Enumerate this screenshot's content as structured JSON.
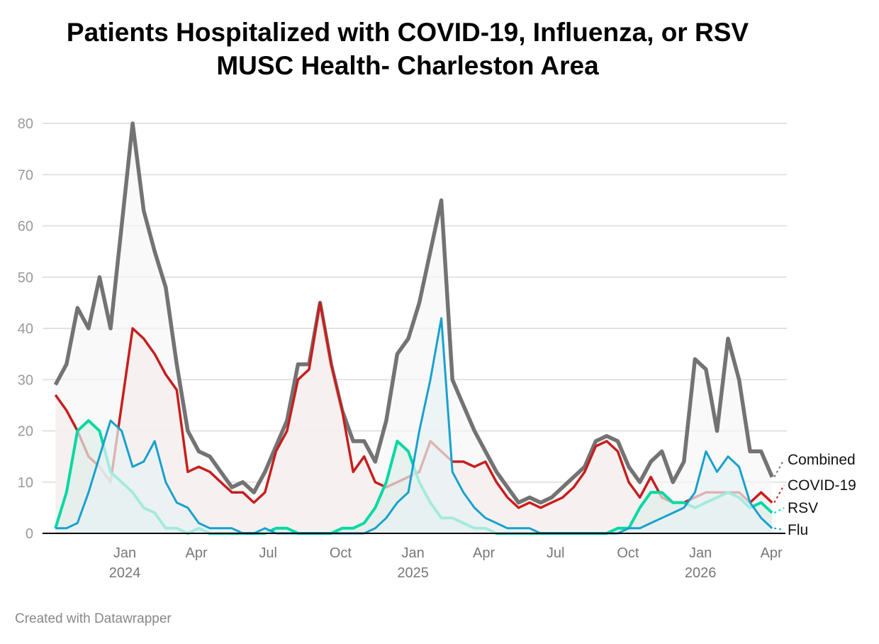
{
  "title": "Patients Hospitalized with COVID-19, Influenza, or RSV",
  "subtitle": "MUSC Health- Charleston Area",
  "footer": "Created with Datawrapper",
  "chart_data": {
    "type": "area",
    "title": "Patients Hospitalized with COVID-19, Influenza, or RSV",
    "subtitle": "MUSC Health- Charleston Area",
    "ylim": [
      0,
      80
    ],
    "yticks": [
      0,
      10,
      20,
      30,
      40,
      50,
      60,
      70,
      80
    ],
    "grid": true,
    "legend": "inline-right",
    "xticks": [
      {
        "date": "2024-01-01",
        "label": "Jan",
        "year": "2024"
      },
      {
        "date": "2024-04-01",
        "label": "Apr",
        "year": ""
      },
      {
        "date": "2024-07-01",
        "label": "Jul",
        "year": ""
      },
      {
        "date": "2024-10-01",
        "label": "Oct",
        "year": ""
      },
      {
        "date": "2025-01-01",
        "label": "Jan",
        "year": "2025"
      },
      {
        "date": "2025-04-01",
        "label": "Apr",
        "year": ""
      },
      {
        "date": "2025-07-01",
        "label": "Jul",
        "year": ""
      },
      {
        "date": "2025-10-01",
        "label": "Oct",
        "year": ""
      },
      {
        "date": "2026-01-01",
        "label": "Jan",
        "year": "2026"
      },
      {
        "date": "2026-04-01",
        "label": "Apr",
        "year": ""
      }
    ],
    "x": [
      "2023-10-05",
      "2023-10-19",
      "2023-11-02",
      "2023-11-16",
      "2023-11-30",
      "2023-12-14",
      "2023-12-28",
      "2024-01-11",
      "2024-01-25",
      "2024-02-08",
      "2024-02-22",
      "2024-03-07",
      "2024-03-21",
      "2024-04-04",
      "2024-04-18",
      "2024-05-02",
      "2024-05-16",
      "2024-05-30",
      "2024-06-13",
      "2024-06-27",
      "2024-07-11",
      "2024-07-25",
      "2024-08-08",
      "2024-08-22",
      "2024-09-05",
      "2024-09-19",
      "2024-10-03",
      "2024-10-17",
      "2024-10-31",
      "2024-11-14",
      "2024-11-28",
      "2024-12-12",
      "2024-12-26",
      "2025-01-09",
      "2025-01-23",
      "2025-02-06",
      "2025-02-20",
      "2025-03-06",
      "2025-03-20",
      "2025-04-03",
      "2025-04-17",
      "2025-05-01",
      "2025-05-15",
      "2025-05-29",
      "2025-06-12",
      "2025-06-26",
      "2025-07-10",
      "2025-07-24",
      "2025-08-07",
      "2025-08-21",
      "2025-09-04",
      "2025-09-18",
      "2025-10-02",
      "2025-10-16",
      "2025-10-30",
      "2025-11-13",
      "2025-11-27",
      "2025-12-11",
      "2025-12-25",
      "2026-01-08",
      "2026-01-22",
      "2026-02-05",
      "2026-02-19",
      "2026-03-05",
      "2026-03-19",
      "2026-04-02"
    ],
    "series": [
      {
        "name": "Combined",
        "color": "#737373",
        "values": [
          29,
          33,
          44,
          40,
          50,
          40,
          60,
          80,
          63,
          55,
          48,
          33,
          20,
          16,
          15,
          12,
          9,
          10,
          8,
          12,
          17,
          22,
          33,
          33,
          45,
          33,
          24,
          18,
          18,
          14,
          22,
          35,
          38,
          45,
          55,
          65,
          30,
          25,
          20,
          16,
          12,
          9,
          6,
          7,
          6,
          7,
          9,
          11,
          13,
          18,
          19,
          18,
          13,
          10,
          14,
          16,
          10,
          14,
          34,
          32,
          20,
          38,
          30,
          16,
          16,
          11
        ]
      },
      {
        "name": "COVID-19",
        "color": "#c71e1d",
        "values": [
          27,
          24,
          20,
          15,
          13,
          10,
          25,
          40,
          38,
          35,
          31,
          28,
          12,
          13,
          12,
          10,
          8,
          8,
          6,
          8,
          16,
          20,
          30,
          32,
          45,
          33,
          24,
          12,
          15,
          10,
          9,
          10,
          11,
          12,
          18,
          16,
          14,
          14,
          13,
          14,
          10,
          7,
          5,
          6,
          5,
          6,
          7,
          9,
          12,
          17,
          18,
          16,
          10,
          7,
          11,
          7,
          6,
          6,
          7,
          8,
          8,
          8,
          8,
          6,
          8,
          6
        ]
      },
      {
        "name": "RSV",
        "color": "#00d9a3",
        "values": [
          1,
          8,
          20,
          22,
          20,
          12,
          10,
          8,
          5,
          4,
          1,
          1,
          0,
          1,
          0,
          0,
          0,
          0,
          0,
          0,
          1,
          1,
          0,
          0,
          0,
          0,
          1,
          1,
          2,
          5,
          10,
          18,
          16,
          10,
          6,
          3,
          3,
          2,
          1,
          1,
          0,
          0,
          0,
          0,
          0,
          0,
          0,
          0,
          0,
          0,
          0,
          1,
          1,
          5,
          8,
          8,
          6,
          6,
          5,
          6,
          7,
          8,
          7,
          5,
          6,
          4
        ]
      },
      {
        "name": "Flu",
        "color": "#18a1cd",
        "values": [
          1,
          1,
          2,
          8,
          15,
          22,
          20,
          13,
          14,
          18,
          10,
          6,
          5,
          2,
          1,
          1,
          1,
          0,
          0,
          1,
          0,
          0,
          0,
          0,
          0,
          0,
          0,
          0,
          0,
          1,
          3,
          6,
          8,
          20,
          30,
          42,
          12,
          8,
          5,
          3,
          2,
          1,
          1,
          1,
          0,
          0,
          0,
          0,
          0,
          0,
          0,
          0,
          1,
          1,
          2,
          3,
          4,
          5,
          8,
          16,
          12,
          15,
          13,
          6,
          3,
          1
        ]
      }
    ]
  }
}
